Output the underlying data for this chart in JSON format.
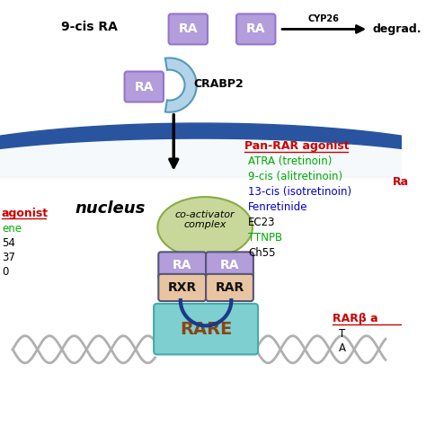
{
  "bg_color": "#ffffff",
  "nucleus_band_color": "#2955a0",
  "nucleus_band_inner": "#e8f0f8",
  "nucleus_text": "nucleus",
  "ra_box_color": "#b39ddb",
  "ra_box_edge": "#9575cd",
  "crabp2_arc_color": "#b3d4e8",
  "arrow_color": "#000000",
  "degrad_text": "degrad.",
  "cis_ra_text": "9-cis RA",
  "crabp2_text": "CRABP2",
  "coact_ellipse_color": "#c8d89a",
  "coact_text": "co-activator\ncomplex",
  "rxr_box_color": "#e8c4a0",
  "rar_box_color": "#e8c4a0",
  "ra_top_color": "#b39ddb",
  "rare_box_color": "#7ecfcf",
  "rare_text_color": "#8B4513",
  "rxr_text": "RXR",
  "rar_text": "RAR",
  "rare_text": "RARE",
  "ra_label": "RA",
  "dna_color": "#c0c0c0",
  "pan_rar_title": "Pan-RAR agonist",
  "pan_rar_title_color": "#cc0000",
  "pan_rar_items": [
    {
      "text": "ATRA (tretinoin)",
      "color": "#00aa00"
    },
    {
      "text": "9-cis (alitretinoin)",
      "color": "#00aa00"
    },
    {
      "text": "13-cis (isotretinoin)",
      "color": "#0000cc"
    },
    {
      "text": "Fenretinide",
      "color": "#0000cc"
    },
    {
      "text": "EC23",
      "color": "#000000"
    },
    {
      "text": "TTNPB",
      "color": "#00aa00"
    },
    {
      "text": "Ch55",
      "color": "#000000"
    }
  ],
  "left_agonist_title": "agonist",
  "left_agonist_color": "#cc0000",
  "left_items": [
    {
      "text": "ene",
      "color": "#00aa00"
    },
    {
      "text": "54",
      "color": "#000000"
    },
    {
      "text": "37",
      "color": "#000000"
    },
    {
      "text": "0",
      "color": "#000000"
    }
  ],
  "rarb_title": "RARβ a",
  "rarb_color": "#cc0000",
  "rarb_items": [
    {
      "text": "T",
      "color": "#000000"
    },
    {
      "text": "A",
      "color": "#000000"
    }
  ],
  "right_ra_text": "Ra",
  "right_ra_color": "#cc0000",
  "cyp26_text": "CYP26"
}
